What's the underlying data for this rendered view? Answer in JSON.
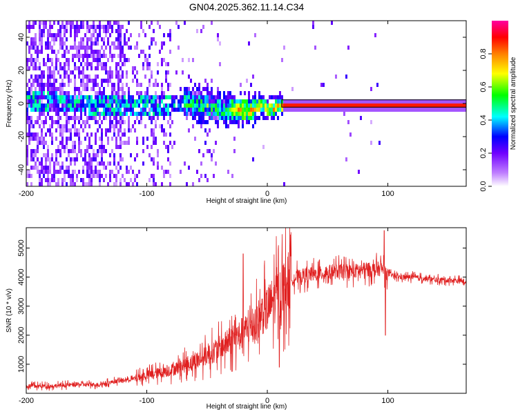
{
  "chart_data": [
    {
      "type": "heatmap",
      "title": "GN04.2025.362.11.14.C34",
      "xlabel": "Height of straight line (km)",
      "ylabel": "Frequency (Hz)",
      "xlim": [
        -200,
        165
      ],
      "ylim": [
        -50,
        50
      ],
      "xticks": [
        -200,
        -100,
        0,
        100
      ],
      "yticks": [
        -40,
        -20,
        0,
        20,
        40
      ],
      "colorbar": {
        "label": "Normalized spectral amplitude",
        "ticks": [
          0.0,
          0.2,
          0.4,
          0.6,
          0.8
        ],
        "tick_labels": [
          "0.0",
          "0.2",
          "0.4",
          "0.6",
          "0.8"
        ],
        "range": [
          0,
          1
        ],
        "colormap": [
          "#ffffff",
          "#8000ff",
          "#0000ff",
          "#00ffff",
          "#00ff00",
          "#ffff00",
          "#ff8000",
          "#ff0000",
          "#ff00a0"
        ]
      },
      "ridge_track": {
        "description_points_x_km": [
          -200,
          -150,
          -120,
          -100,
          -80,
          -60,
          -40,
          -25,
          -15,
          -5,
          0,
          5,
          10,
          20,
          40,
          60,
          80,
          100,
          130,
          165
        ],
        "frequency_hz": [
          2,
          1,
          0,
          0,
          1,
          1,
          -2,
          -3,
          -3,
          1,
          -2,
          -2,
          0,
          0,
          0,
          0,
          0,
          0,
          0,
          0
        ]
      }
    },
    {
      "type": "line",
      "xlabel": "Height of straight line (km)",
      "ylabel": "SNR (10 * v/v)",
      "xlim": [
        -200,
        165
      ],
      "ylim": [
        0,
        5700
      ],
      "xticks": [
        -200,
        -100,
        0,
        100
      ],
      "yticks": [
        1000,
        2000,
        3000,
        4000,
        5000
      ],
      "color": "#e02020",
      "series": [
        {
          "name": "SNR",
          "x": [
            -200,
            -180,
            -160,
            -140,
            -125,
            -110,
            -100,
            -90,
            -80,
            -70,
            -60,
            -50,
            -40,
            -30,
            -20,
            -10,
            -5,
            0,
            5,
            10,
            15,
            20,
            25,
            30,
            40,
            50,
            60,
            70,
            80,
            90,
            95,
            100,
            105,
            110,
            120,
            130,
            140,
            150,
            165
          ],
          "y": [
            250,
            250,
            300,
            300,
            420,
            500,
            620,
            700,
            800,
            950,
            1100,
            1300,
            1550,
            1800,
            2100,
            2400,
            2700,
            2900,
            3200,
            3500,
            3750,
            3950,
            4000,
            4050,
            4100,
            4150,
            4200,
            4200,
            4250,
            4250,
            4300,
            4100,
            4050,
            4000,
            4000,
            3950,
            3900,
            3900,
            3850
          ]
        }
      ],
      "spikes": [
        {
          "x": -20,
          "y": 4800
        },
        {
          "x": 10,
          "y": 5000
        },
        {
          "x": 10,
          "y": 900
        },
        {
          "x": 97,
          "y": 5600
        },
        {
          "x": 98,
          "y": 2000
        }
      ]
    }
  ]
}
